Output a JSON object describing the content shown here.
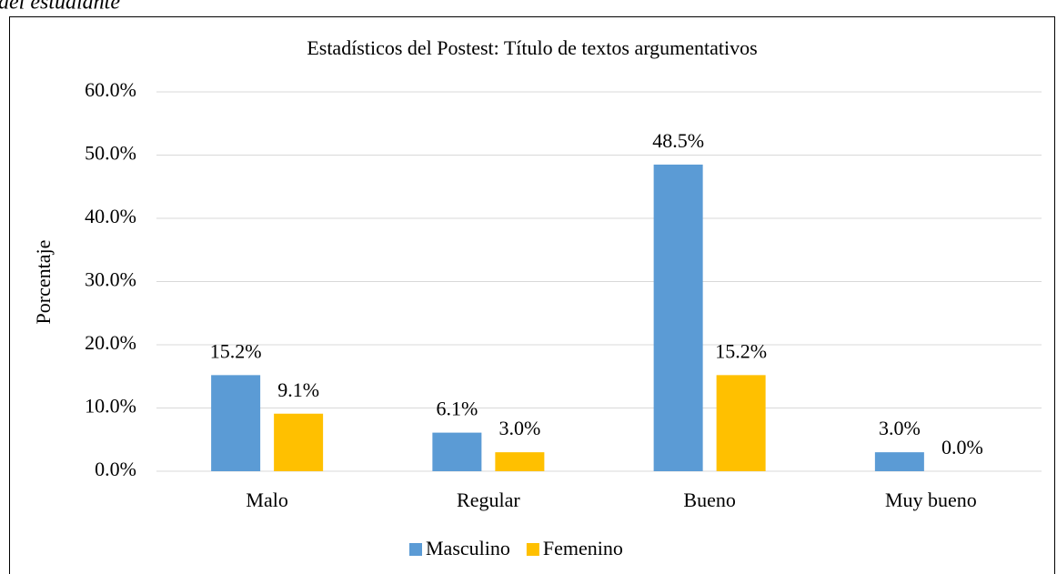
{
  "caption": "del estudiante",
  "chart_data": {
    "type": "bar",
    "title": "Estadísticos del Postest: Título de textos argumentativos",
    "y_label": "Porcentaje",
    "categories": [
      "Malo",
      "Regular",
      "Bueno",
      "Muy bueno"
    ],
    "series": [
      {
        "name": "Masculino",
        "color": "#5b9bd5",
        "values": [
          15.2,
          6.1,
          48.5,
          3.0
        ],
        "value_labels": [
          "15.2%",
          "6.1%",
          "48.5%",
          "3.0%"
        ]
      },
      {
        "name": "Femenino",
        "color": "#ffc000",
        "values": [
          9.1,
          3.0,
          15.2,
          0.0
        ],
        "value_labels": [
          "9.1%",
          "3.0%",
          "15.2%",
          "0.0%"
        ]
      }
    ],
    "ylim": [
      0,
      60
    ],
    "yticks": [
      {
        "value": 0,
        "label": "0.0%"
      },
      {
        "value": 10,
        "label": "10.0%"
      },
      {
        "value": 20,
        "label": "20.0%"
      },
      {
        "value": 30,
        "label": "30.0%"
      },
      {
        "value": 40,
        "label": "40.0%"
      },
      {
        "value": 50,
        "label": "50.0%"
      },
      {
        "value": 60,
        "label": "60.0%"
      }
    ],
    "grid": true,
    "legend": "bottom"
  }
}
